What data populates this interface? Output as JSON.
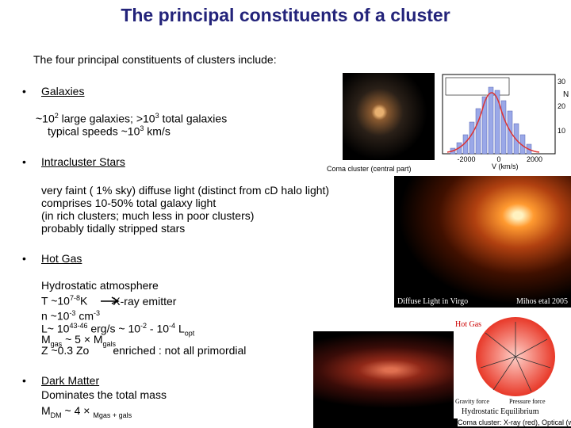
{
  "title": "The principal constituents  of a cluster",
  "intro": "The four principal constituents of clusters include:",
  "bullet": "•",
  "items": [
    {
      "heading": "Galaxies",
      "lines": [
        [
          {
            "text": "~10"
          },
          {
            "sup": "2"
          },
          {
            "text": " large galaxies;  >10"
          },
          {
            "sup": "3"
          },
          {
            "text": " total galaxies"
          }
        ],
        [
          {
            "text": "typical speeds  ~10"
          },
          {
            "sup": "3"
          },
          {
            "text": " km/s"
          }
        ]
      ]
    },
    {
      "heading": "Intracluster Stars",
      "lines": [
        [
          {
            "text": "very faint ( 1% sky) diffuse light (distinct from cD halo light)"
          }
        ],
        [
          {
            "text": "comprises  10-50% total galaxy light"
          }
        ],
        [
          {
            "text": "(in rich clusters; much less in poor clusters)"
          }
        ],
        [
          {
            "text": "probably tidally stripped stars"
          }
        ]
      ]
    },
    {
      "heading": "Hot Gas",
      "lines": [
        [
          {
            "text": "Hydrostatic atmosphere"
          }
        ],
        [
          {
            "text": "T ~10"
          },
          {
            "sup": "7-8"
          },
          {
            "text": "K"
          },
          {
            "text": "X-ray emitter"
          }
        ],
        [
          {
            "text": "n ~10"
          },
          {
            "sup": "-3"
          },
          {
            "text": " cm"
          },
          {
            "sup": "-3"
          }
        ],
        [
          {
            "text": "L~ 10"
          },
          {
            "sup": "43-46"
          },
          {
            "text": " erg/s ~ 10"
          },
          {
            "sup": "-2"
          },
          {
            "text": " - 10"
          },
          {
            "sup": "-4"
          },
          {
            "text": " L"
          },
          {
            "sub": "opt"
          }
        ],
        [
          {
            "text": "M"
          },
          {
            "sub": "gas"
          },
          {
            "text": " ~ 5 × M"
          },
          {
            "sub": "gals"
          }
        ],
        [
          {
            "text": "Z ~0.3 Zo"
          },
          {
            "text": "enriched : not all primordial"
          }
        ]
      ]
    },
    {
      "heading": "Dark Matter",
      "lines": [
        [
          {
            "text": "Dominates the total mass"
          }
        ],
        [
          {
            "text": "M"
          },
          {
            "sub": "DM"
          },
          {
            "text": " ~ 4 × "
          },
          {
            "sub": "Mgas + gals"
          }
        ]
      ]
    }
  ],
  "figures": {
    "velocity_histogram": {
      "caption": "Coma cluster (central part)",
      "xlabel": "V (km/s)",
      "ylabel": "N",
      "xticks": [
        "-2000",
        "0",
        "2000"
      ],
      "yticks": [
        "30",
        "20",
        "10"
      ]
    },
    "virgo": {
      "caption": "Diffuse Light in Virgo",
      "credit": "Mihos etal 2005"
    },
    "hot_gas": {
      "label": "Hot Gas",
      "gravity": "Gravity force",
      "pressure": "Pressure force",
      "caption": "Hydrostatic Equilibrium"
    },
    "coma_xray": {
      "caption": "Coma cluster: X-ray (red), Optical (white)"
    }
  }
}
